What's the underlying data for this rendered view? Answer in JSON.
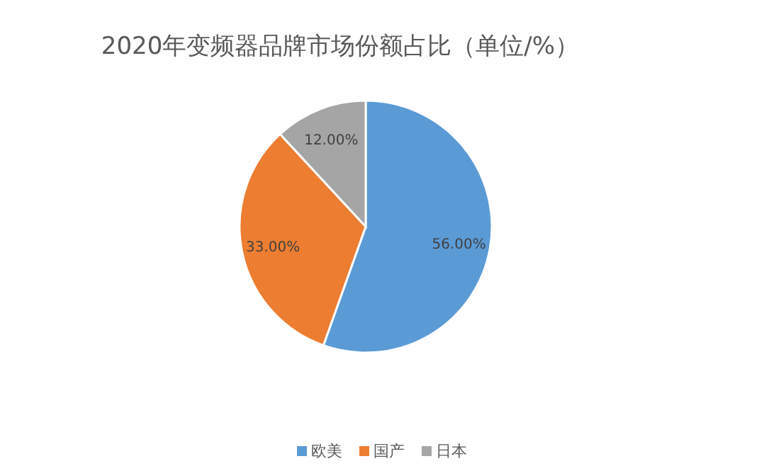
{
  "chart_data": {
    "type": "pie",
    "title": "2020年变频器品牌市场份额占比（单位/%）",
    "categories": [
      "欧美",
      "国产",
      "日本"
    ],
    "values": [
      56,
      33,
      12
    ],
    "colors": [
      "#5b9bd5",
      "#ed7d31",
      "#a5a5a5"
    ],
    "value_labels": [
      "56.00%",
      "33.00%",
      "12.00%"
    ],
    "legend": "bottom"
  }
}
